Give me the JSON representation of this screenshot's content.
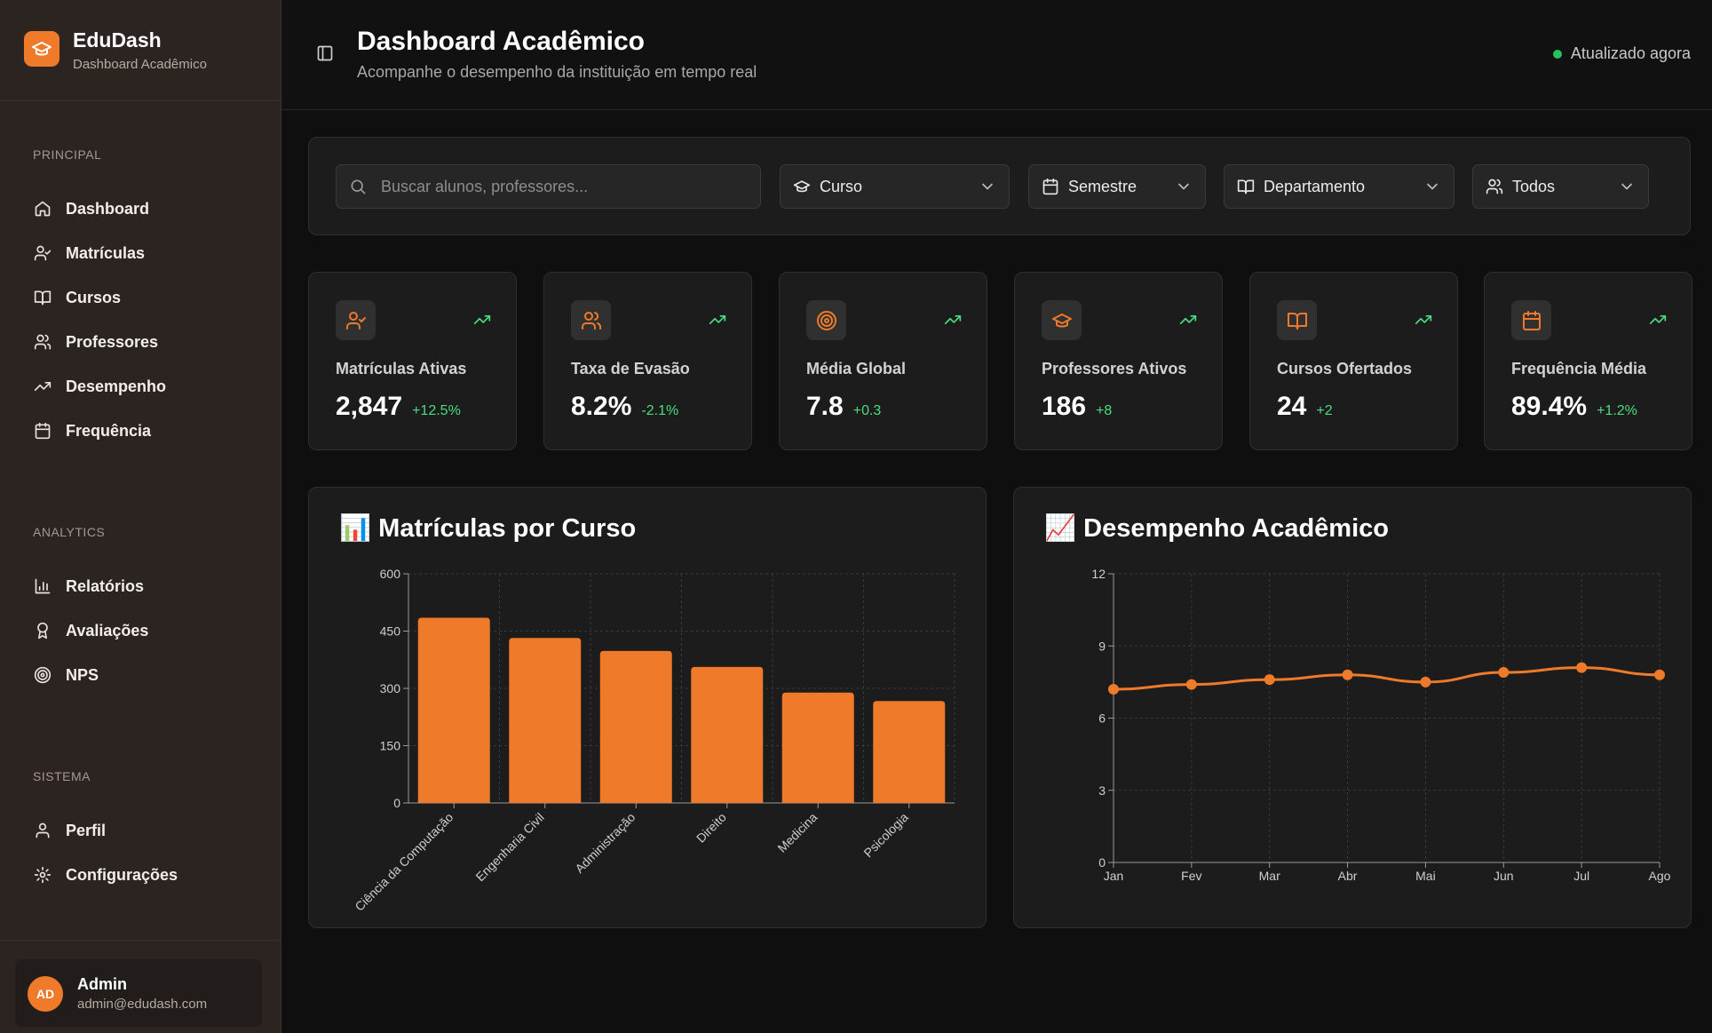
{
  "app": {
    "name": "EduDash",
    "subtitle": "Dashboard Acadêmico"
  },
  "sidebar": {
    "sections": [
      {
        "title": "PRINCIPAL",
        "items": [
          {
            "label": "Dashboard",
            "icon": "home-icon"
          },
          {
            "label": "Matrículas",
            "icon": "user-check-icon"
          },
          {
            "label": "Cursos",
            "icon": "book-icon"
          },
          {
            "label": "Professores",
            "icon": "users-icon"
          },
          {
            "label": "Desempenho",
            "icon": "trending-up-icon"
          },
          {
            "label": "Frequência",
            "icon": "calendar-icon"
          }
        ]
      },
      {
        "title": "ANALYTICS",
        "items": [
          {
            "label": "Relatórios",
            "icon": "bar-chart-icon"
          },
          {
            "label": "Avaliações",
            "icon": "award-icon"
          },
          {
            "label": "NPS",
            "icon": "target-icon"
          }
        ]
      },
      {
        "title": "SISTEMA",
        "items": [
          {
            "label": "Perfil",
            "icon": "user-icon"
          },
          {
            "label": "Configurações",
            "icon": "gear-icon"
          }
        ]
      }
    ],
    "user": {
      "initials": "AD",
      "name": "Admin",
      "email": "admin@edudash.com"
    }
  },
  "header": {
    "title": "Dashboard Acadêmico",
    "subtitle": "Acompanhe o desempenho da instituição em tempo real",
    "status": "Atualizado agora"
  },
  "filters": {
    "search_placeholder": "Buscar alunos, professores...",
    "curso": "Curso",
    "semestre": "Semestre",
    "departamento": "Departamento",
    "todos": "Todos"
  },
  "kpis": [
    {
      "label": "Matrículas Ativas",
      "value": "2,847",
      "delta": "+12.5%",
      "icon": "user-check-icon"
    },
    {
      "label": "Taxa de Evasão",
      "value": "8.2%",
      "delta": "-2.1%",
      "icon": "users-icon"
    },
    {
      "label": "Média Global",
      "value": "7.8",
      "delta": "+0.3",
      "icon": "target-icon"
    },
    {
      "label": "Professores Ativos",
      "value": "186",
      "delta": "+8",
      "icon": "graduation-cap-icon"
    },
    {
      "label": "Cursos Ofertados",
      "value": "24",
      "delta": "+2",
      "icon": "book-icon"
    },
    {
      "label": "Frequência Média",
      "value": "89.4%",
      "delta": "+1.2%",
      "icon": "calendar-icon"
    }
  ],
  "colors": {
    "accent": "#ef7a2a",
    "positive": "#4ade80",
    "status_dot": "#22c55e"
  },
  "chart_data": [
    {
      "type": "bar",
      "title": "Matrículas por Curso",
      "title_emoji": "📊",
      "categories": [
        "Ciência da Computação",
        "Engenharia Civil",
        "Administração",
        "Direito",
        "Medicina",
        "Psicologia"
      ],
      "values": [
        485,
        432,
        398,
        356,
        289,
        267
      ],
      "ylim": [
        0,
        600
      ],
      "yticks": [
        0,
        150,
        300,
        450,
        600
      ],
      "grid": true
    },
    {
      "type": "line",
      "title": "Desempenho Acadêmico",
      "title_emoji": "📈",
      "categories": [
        "Jan",
        "Fev",
        "Mar",
        "Abr",
        "Mai",
        "Jun",
        "Jul",
        "Ago"
      ],
      "values": [
        7.2,
        7.4,
        7.6,
        7.8,
        7.5,
        7.9,
        8.1,
        7.8
      ],
      "ylim": [
        0,
        12
      ],
      "yticks": [
        0,
        3,
        6,
        9,
        12
      ],
      "grid": true
    }
  ]
}
